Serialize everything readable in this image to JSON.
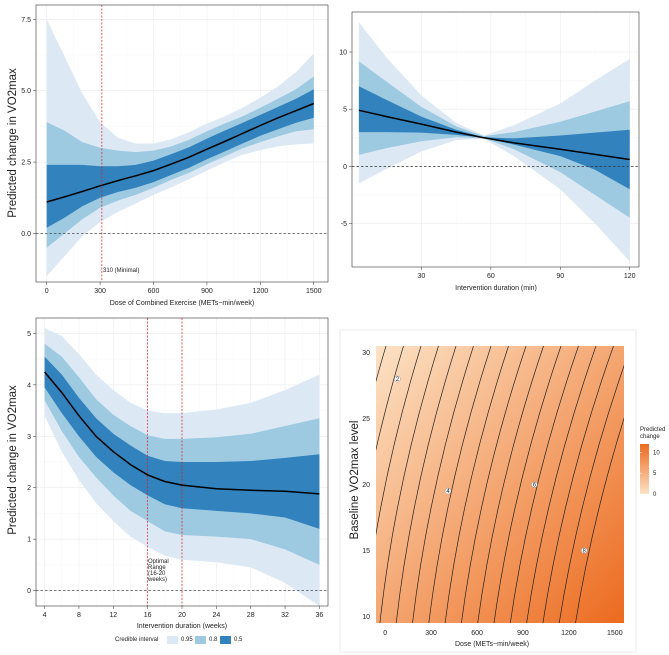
{
  "colors": {
    "ci95": "#dce9f5",
    "ci80": "#9ecae1",
    "ci50": "#3182bd",
    "median_line": "#000000",
    "reference_line": "#e31a1c",
    "contour_line": "#222222",
    "heat_low": "#fce2c5",
    "heat_high": "#ec6a1e"
  },
  "chart_data": [
    {
      "id": "dose",
      "type": "area",
      "title": "",
      "xlabel": "Dose of  Combined Exercise (METs−min/week)",
      "ylabel": "Predicted change in VO2max",
      "xlim": [
        -60,
        1580
      ],
      "ylim": [
        -1.7,
        8.0
      ],
      "xticks": [
        0,
        300,
        600,
        900,
        1200,
        1500
      ],
      "yticks": [
        0,
        2.5,
        5,
        7.5
      ],
      "ytick_labels": [
        "0.0",
        "2.5",
        "5.0",
        "7.5"
      ],
      "x": [
        0,
        100,
        200,
        300,
        400,
        500,
        600,
        700,
        800,
        900,
        1000,
        1100,
        1200,
        1300,
        1400,
        1500
      ],
      "median": [
        1.1,
        1.28,
        1.47,
        1.67,
        1.85,
        2.02,
        2.2,
        2.43,
        2.67,
        2.95,
        3.22,
        3.5,
        3.78,
        4.05,
        4.3,
        4.55
      ],
      "ci50_lower": [
        0.2,
        0.55,
        0.95,
        1.25,
        1.45,
        1.6,
        1.8,
        2.05,
        2.3,
        2.6,
        2.87,
        3.15,
        3.42,
        3.65,
        3.88,
        4.05
      ],
      "ci50_upper": [
        2.4,
        2.4,
        2.4,
        2.35,
        2.35,
        2.4,
        2.55,
        2.78,
        3.02,
        3.32,
        3.6,
        3.87,
        4.15,
        4.43,
        4.72,
        5.05
      ],
      "ci80_lower": [
        -0.5,
        0.0,
        0.5,
        0.9,
        1.15,
        1.35,
        1.6,
        1.88,
        2.12,
        2.42,
        2.7,
        2.98,
        3.2,
        3.4,
        3.58,
        3.65
      ],
      "ci80_upper": [
        3.9,
        3.6,
        3.2,
        3.0,
        2.9,
        2.85,
        2.9,
        3.05,
        3.28,
        3.58,
        3.85,
        4.1,
        4.4,
        4.72,
        5.05,
        5.5
      ],
      "ci95_lower": [
        -1.5,
        -0.8,
        -0.1,
        0.4,
        0.75,
        1.05,
        1.35,
        1.62,
        1.9,
        2.2,
        2.5,
        2.75,
        2.92,
        3.05,
        3.12,
        3.15
      ],
      "ci95_upper": [
        7.5,
        6.2,
        4.9,
        3.9,
        3.35,
        3.15,
        3.15,
        3.3,
        3.55,
        3.85,
        4.1,
        4.4,
        4.75,
        5.15,
        5.65,
        6.3
      ],
      "reference_zero": 0,
      "vline_x": 310,
      "vline_label": "310 (Minimal)"
    },
    {
      "id": "time",
      "type": "area",
      "title": "",
      "xlabel": "Intervention duration (min)",
      "ylabel": "",
      "xlim": [
        0,
        124
      ],
      "ylim": [
        -8.8,
        13.5
      ],
      "xticks": [
        30,
        60,
        90,
        120
      ],
      "yticks": [
        -5,
        0,
        5,
        10
      ],
      "ytick_labels": [
        "-5",
        "0",
        "5",
        "10"
      ],
      "x": [
        3,
        15,
        30,
        45,
        57,
        70,
        90,
        105,
        120
      ],
      "median": [
        4.9,
        4.35,
        3.7,
        3.0,
        2.5,
        2.05,
        1.5,
        1.05,
        0.6
      ],
      "ci50_lower": [
        3.0,
        3.0,
        2.95,
        2.75,
        2.5,
        1.9,
        0.9,
        -0.3,
        -2.0
      ],
      "ci50_upper": [
        7.0,
        5.8,
        4.35,
        3.2,
        2.55,
        2.45,
        2.7,
        2.95,
        3.2
      ],
      "ci80_lower": [
        1.0,
        1.6,
        2.2,
        2.55,
        2.45,
        1.5,
        -0.5,
        -2.5,
        -4.5
      ],
      "ci80_upper": [
        9.2,
        7.4,
        5.2,
        3.5,
        2.65,
        3.0,
        3.9,
        4.8,
        5.7
      ],
      "ci95_lower": [
        -1.5,
        -0.2,
        1.3,
        2.3,
        2.4,
        0.9,
        -2.0,
        -5.0,
        -8.3
      ],
      "ci95_upper": [
        12.6,
        9.5,
        6.2,
        3.8,
        2.7,
        3.6,
        5.5,
        7.5,
        9.4
      ],
      "reference_zero": 0
    },
    {
      "id": "weeks",
      "type": "area",
      "title": "",
      "xlabel": "Intervention duration (weeks)",
      "ylabel": "Predicted change in VO2max",
      "xlim": [
        3.0,
        37.0
      ],
      "ylim": [
        -0.3,
        5.3
      ],
      "xticks": [
        4,
        8,
        12,
        16,
        20,
        24,
        28,
        32,
        36
      ],
      "yticks": [
        0,
        1,
        2,
        3,
        4,
        5
      ],
      "ytick_labels": [
        "0",
        "1",
        "2",
        "3",
        "4",
        "5"
      ],
      "x": [
        4,
        6,
        8,
        10,
        12,
        14,
        16,
        18,
        20,
        24,
        28,
        32,
        36
      ],
      "median": [
        4.25,
        3.85,
        3.4,
        3.0,
        2.7,
        2.45,
        2.25,
        2.12,
        2.05,
        1.98,
        1.95,
        1.93,
        1.88
      ],
      "ci50_lower": [
        3.95,
        3.45,
        3.0,
        2.6,
        2.3,
        2.05,
        1.85,
        1.68,
        1.6,
        1.55,
        1.5,
        1.42,
        1.2
      ],
      "ci50_upper": [
        4.55,
        4.2,
        3.75,
        3.35,
        3.05,
        2.82,
        2.62,
        2.52,
        2.5,
        2.5,
        2.52,
        2.58,
        2.65
      ],
      "ci80_lower": [
        3.7,
        3.1,
        2.6,
        2.2,
        1.85,
        1.55,
        1.35,
        1.15,
        1.08,
        1.05,
        1.0,
        0.8,
        0.5
      ],
      "ci80_upper": [
        4.8,
        4.55,
        4.15,
        3.72,
        3.42,
        3.2,
        3.02,
        2.95,
        2.95,
        2.98,
        3.05,
        3.2,
        3.35
      ],
      "ci95_lower": [
        3.4,
        2.7,
        2.15,
        1.7,
        1.35,
        1.05,
        0.85,
        0.68,
        0.6,
        0.55,
        0.45,
        0.15,
        -0.3
      ],
      "ci95_upper": [
        5.1,
        4.95,
        4.6,
        4.2,
        3.9,
        3.65,
        3.5,
        3.45,
        3.45,
        3.52,
        3.65,
        3.9,
        4.2
      ],
      "reference_zero": 0,
      "vlines_x": [
        16,
        20
      ],
      "annotation": [
        "Optimal",
        "Range",
        "(16-20",
        "weeks)"
      ],
      "legend": {
        "title": "Credible interval",
        "items": [
          {
            "label": "0.95",
            "color": "#dce9f5"
          },
          {
            "label": "0.8",
            "color": "#9ecae1"
          },
          {
            "label": "0.5",
            "color": "#3182bd"
          }
        ]
      }
    },
    {
      "id": "heat",
      "type": "heatmap",
      "title": "",
      "xlabel": "Dose (METs−min/week)",
      "ylabel": "Baseline VO2max level",
      "xlim": [
        -60,
        1560
      ],
      "ylim": [
        9.5,
        30.5
      ],
      "xticks": [
        0,
        300,
        600,
        900,
        1200,
        1500
      ],
      "yticks": [
        10,
        15,
        20,
        25,
        30
      ],
      "value_range": [
        0,
        12
      ],
      "contour_levels_count": 16,
      "contour_labels": [
        {
          "text": "2",
          "x": 80,
          "y": 28.0
        },
        {
          "text": "4",
          "x": 410,
          "y": 19.5
        },
        {
          "text": "6",
          "x": 975,
          "y": 20.0
        },
        {
          "text": "8",
          "x": 1300,
          "y": 15.0
        }
      ],
      "legend": {
        "title": [
          "Predicted",
          "change"
        ],
        "ticks": [
          "10",
          "5",
          "0"
        ],
        "tick_values": [
          10,
          5,
          0
        ]
      }
    }
  ]
}
